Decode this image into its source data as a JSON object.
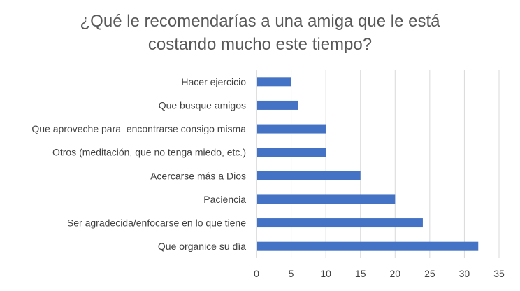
{
  "chart_data": {
    "type": "bar",
    "orientation": "horizontal",
    "title_lines": [
      "¿Qué le recomendarías a una amiga que le está",
      "costando mucho este tiempo?"
    ],
    "categories": [
      "Hacer ejercicio",
      "Que busque amigos",
      "Que aproveche para  encontrarse consigo misma",
      "Otros (meditación, que no tenga miedo, etc.)",
      "Acercarse más a Dios",
      "Paciencia",
      "Ser agradecida/enfocarse en lo que tiene",
      "Que organice su día"
    ],
    "values": [
      5,
      6,
      10,
      10,
      15,
      20,
      24,
      32
    ],
    "xlim": [
      0,
      35
    ],
    "xticks": [
      "0",
      "5",
      "10",
      "15",
      "20",
      "25",
      "30",
      "35"
    ],
    "grid": "vertical",
    "legend": "none",
    "colors": {
      "bar": "#4472C4",
      "grid": "#D9D9D9",
      "axis": "#BFBFBF",
      "text": "#404040",
      "title": "#595959"
    }
  }
}
